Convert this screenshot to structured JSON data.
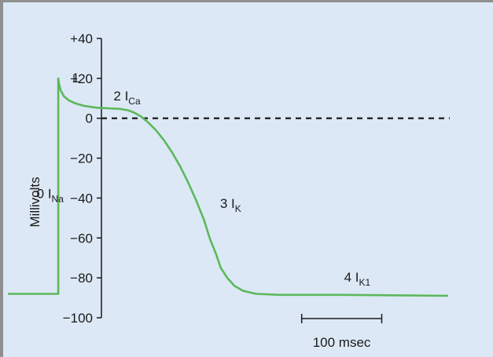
{
  "chart_data": {
    "type": "line",
    "title": "",
    "xlabel": "",
    "ylabel": "Millivolts",
    "ylim": [
      -100,
      40
    ],
    "y_ticks": [
      {
        "value": 40,
        "label": "+40"
      },
      {
        "value": 20,
        "label": "+20"
      },
      {
        "value": 0,
        "label": "0"
      },
      {
        "value": -20,
        "label": "−20"
      },
      {
        "value": -40,
        "label": "−40"
      },
      {
        "value": -60,
        "label": "−60"
      },
      {
        "value": -80,
        "label": "−80"
      },
      {
        "value": -100,
        "label": "−100"
      }
    ],
    "xlim": [
      0,
      550
    ],
    "x_unit": "msec",
    "grid": false,
    "series": [
      {
        "color": "#5cb85c",
        "points": [
          [
            0,
            -88
          ],
          [
            63,
            -88
          ],
          [
            63,
            20
          ],
          [
            64,
            17
          ],
          [
            66,
            14
          ],
          [
            70,
            11
          ],
          [
            76,
            9
          ],
          [
            84,
            7.5
          ],
          [
            95,
            6.2
          ],
          [
            110,
            5.3
          ],
          [
            125,
            5
          ],
          [
            140,
            4.7
          ],
          [
            150,
            4
          ],
          [
            158,
            2.8
          ],
          [
            166,
            1
          ],
          [
            175,
            -2
          ],
          [
            185,
            -6
          ],
          [
            195,
            -11
          ],
          [
            205,
            -17
          ],
          [
            215,
            -24
          ],
          [
            225,
            -32
          ],
          [
            235,
            -41
          ],
          [
            245,
            -51
          ],
          [
            252,
            -60
          ],
          [
            260,
            -68
          ],
          [
            266,
            -75
          ],
          [
            274,
            -80
          ],
          [
            283,
            -84
          ],
          [
            294,
            -86.5
          ],
          [
            310,
            -88
          ],
          [
            340,
            -88.5
          ],
          [
            420,
            -88.5
          ],
          [
            550,
            -89
          ]
        ]
      }
    ],
    "reference_lines": [
      {
        "axis": "y",
        "value": 0,
        "style": "dashed",
        "color": "#1a1a1a"
      }
    ],
    "annotations": [
      {
        "phase": "0",
        "current": "I",
        "subscript": "Na",
        "x": 36,
        "y": -40
      },
      {
        "phase": "1",
        "current": "",
        "subscript": "",
        "x": 80,
        "y": 18
      },
      {
        "phase": "2",
        "current": "I",
        "subscript": "Ca",
        "x": 132,
        "y": 9
      },
      {
        "phase": "3",
        "current": "I",
        "subscript": "K",
        "x": 265,
        "y": -45
      },
      {
        "phase": "4",
        "current": "I",
        "subscript": "K1",
        "x": 420,
        "y": -82
      }
    ],
    "scale_bar": {
      "x_start": 367,
      "x_end": 467,
      "label": "100 msec"
    }
  }
}
